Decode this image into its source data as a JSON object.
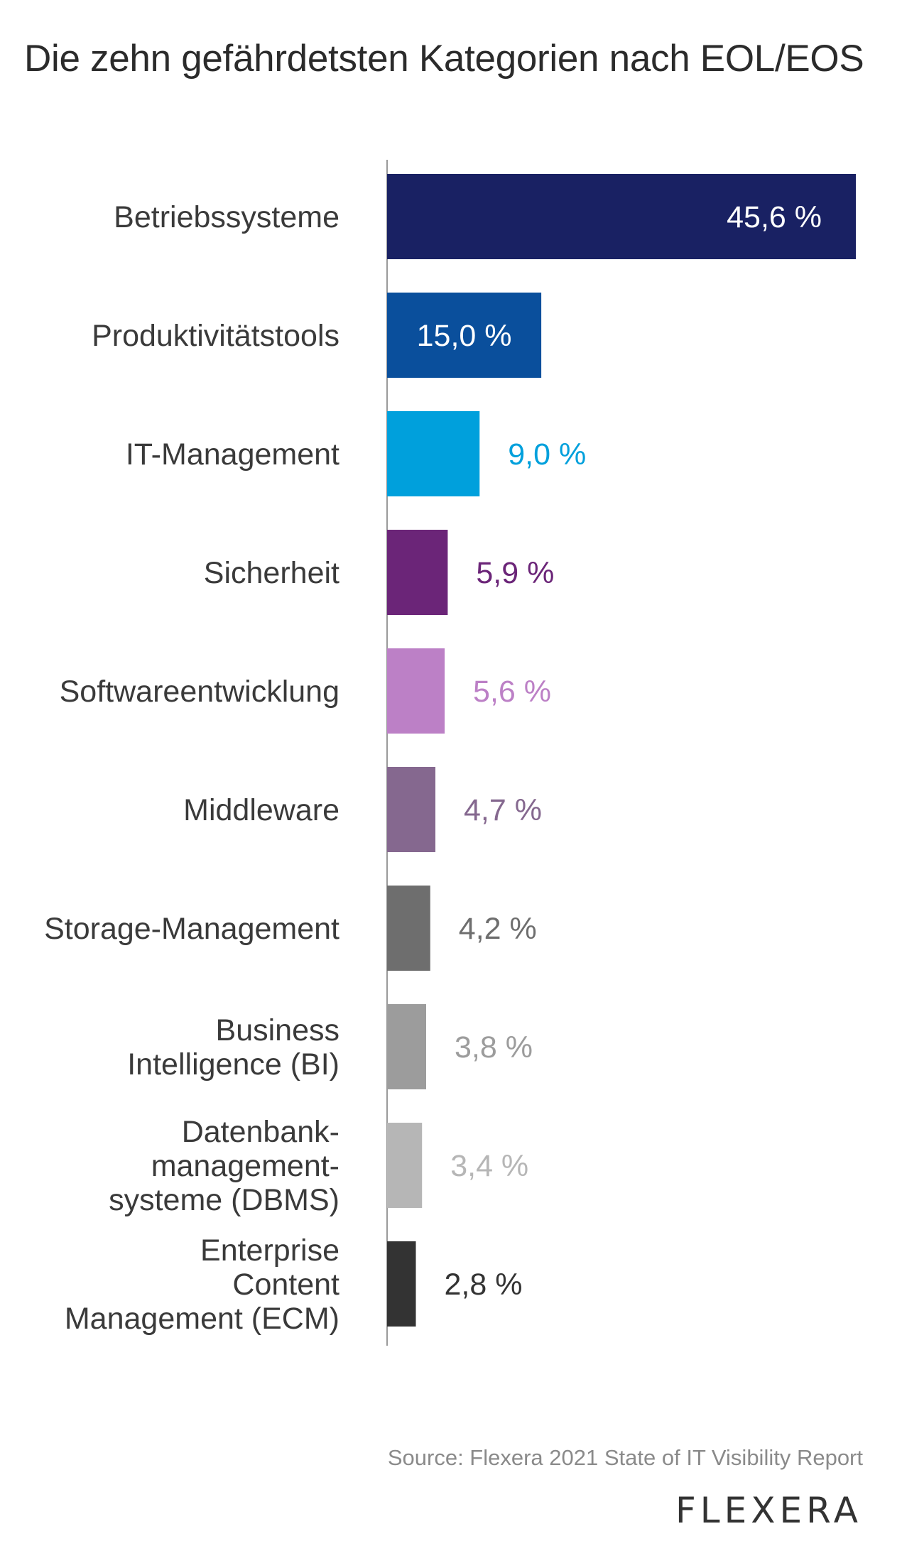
{
  "chart_data": {
    "type": "bar",
    "orientation": "horizontal",
    "title": "Die zehn gefährdetsten Kategorien nach EOL/EOS",
    "categories": [
      [
        "Betriebssysteme"
      ],
      [
        "Produktivitätstools"
      ],
      [
        "IT-Management"
      ],
      [
        "Sicherheit"
      ],
      [
        "Softwareentwicklung"
      ],
      [
        "Middleware"
      ],
      [
        "Storage-Management"
      ],
      [
        "Business",
        "Intelligence (BI)"
      ],
      [
        "Datenbank-",
        "management-",
        "systeme (DBMS)"
      ],
      [
        "Enterprise",
        "Content",
        "Management (ECM)"
      ]
    ],
    "values": [
      45.6,
      15.0,
      9.0,
      5.9,
      5.6,
      4.7,
      4.2,
      3.8,
      3.4,
      2.8
    ],
    "value_labels": [
      "45,6 %",
      "15,0 %",
      "9,0 %",
      "5,9 %",
      "5,6 %",
      "4,7 %",
      "4,2 %",
      "3,8 %",
      "3,4 %",
      "2,8 %"
    ],
    "colors": [
      "#192163",
      "#0a4f9c",
      "#00a0dc",
      "#6b2578",
      "#bc80c6",
      "#85688f",
      "#6e6e6e",
      "#9c9c9c",
      "#b6b6b6",
      "#333333"
    ],
    "xlim": [
      0,
      45.6
    ],
    "grid": false,
    "legend": "none"
  },
  "footer": {
    "source": "Source: Flexera 2021 State of IT Visibility Report",
    "brand": "FLEXERA"
  }
}
